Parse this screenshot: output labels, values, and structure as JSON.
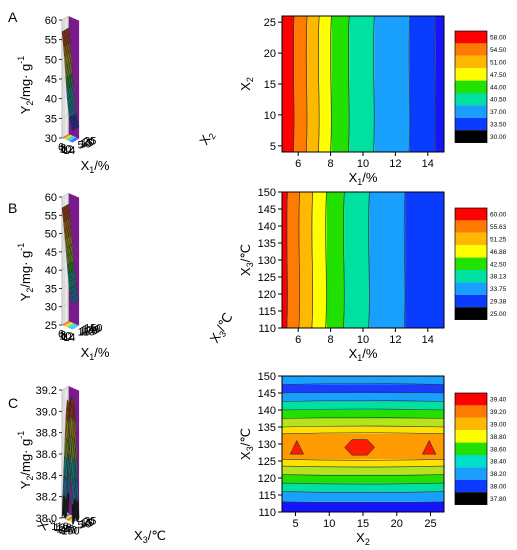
{
  "panel_labels": [
    "A",
    "B",
    "C"
  ],
  "colors": {
    "wall": "#7a1a8c",
    "grid_wall": "#c9c9c9",
    "scale": [
      "#000000",
      "#1a3cff",
      "#19b4ff",
      "#00e0c8",
      "#28d12a",
      "#b6e31b",
      "#ffe000",
      "#ff9a00",
      "#ff4a00",
      "#ff0000"
    ]
  },
  "chart_data": [
    {
      "type": "surface3d",
      "panel": "A",
      "xlabel_main": "X",
      "xlabel_sub": "1",
      "xlabel_unit": "/%",
      "ylabel_main": "X",
      "ylabel_sub": "2",
      "zlabel_main": "Y",
      "zlabel_sub": "2",
      "zlabel_unit": "/mg· g",
      "zlabel_exp": "-1",
      "xticks": [
        "6",
        "8",
        "10",
        "12",
        "14"
      ],
      "yticks": [
        "5",
        "10",
        "15",
        "20",
        "25"
      ],
      "zticks": [
        "30",
        "35",
        "40",
        "45",
        "50",
        "55",
        "60"
      ],
      "xlim": [
        5,
        15
      ],
      "ylim": [
        5,
        25
      ],
      "zlim": [
        30,
        60
      ],
      "surface_z_by_x": [
        57,
        54,
        50,
        45,
        40.5,
        37.5,
        35.5,
        34,
        33
      ]
    },
    {
      "type": "contour",
      "panel": "A",
      "xlabel_main": "X",
      "xlabel_sub": "1",
      "xlabel_unit": "/%",
      "ylabel_main": "X",
      "ylabel_sub": "2",
      "xticks": [
        "6",
        "8",
        "10",
        "12",
        "14"
      ],
      "yticks": [
        "5",
        "10",
        "15",
        "20",
        "25"
      ],
      "xlim": [
        5,
        15
      ],
      "ylim": [
        4,
        26
      ],
      "boundaries_x": [
        5.75,
        6.55,
        7.3,
        8.05,
        9.15,
        10.7,
        12.9,
        14.5
      ],
      "legend": [
        "58.00",
        "54.50",
        "51.00",
        "47.50",
        "44.00",
        "40.50",
        "37.00",
        "33.50",
        "30.00"
      ]
    },
    {
      "type": "surface3d",
      "panel": "B",
      "xlabel_main": "X",
      "xlabel_sub": "1",
      "xlabel_unit": "/%",
      "ylabel_main": "X",
      "ylabel_sub": "3",
      "ylabel_unit": "/℃",
      "zlabel_main": "Y",
      "zlabel_sub": "2",
      "zlabel_unit": "/mg· g",
      "zlabel_exp": "-1",
      "xticks": [
        "6",
        "8",
        "10",
        "12",
        "14"
      ],
      "yticks": [
        "110",
        "120",
        "130",
        "140",
        "150"
      ],
      "zticks": [
        "25",
        "30",
        "35",
        "40",
        "45",
        "50",
        "55",
        "60"
      ],
      "xlim": [
        5,
        15
      ],
      "ylim": [
        110,
        150
      ],
      "zlim": [
        25,
        60
      ],
      "surface_z_by_x": [
        57,
        54,
        50,
        46,
        42,
        38,
        35,
        33,
        32
      ]
    },
    {
      "type": "contour",
      "panel": "B",
      "xlabel_main": "X",
      "xlabel_sub": "1",
      "xlabel_unit": "/%",
      "ylabel_main": "X",
      "ylabel_sub": "3",
      "ylabel_unit": "/℃",
      "xticks": [
        "6",
        "8",
        "10",
        "12",
        "14"
      ],
      "yticks": [
        "110",
        "115",
        "120",
        "125",
        "130",
        "135",
        "140",
        "145",
        "150"
      ],
      "xlim": [
        5,
        15
      ],
      "ylim": [
        110,
        150
      ],
      "boundaries_x": [
        5.35,
        6.1,
        6.9,
        7.75,
        8.85,
        10.4,
        12.6,
        15.2
      ],
      "legend": [
        "60.00",
        "55.63",
        "51.25",
        "46.88",
        "42.50",
        "38.13",
        "33.75",
        "29.38",
        "25.00"
      ]
    },
    {
      "type": "surface3d",
      "panel": "C",
      "xlabel_main": "X",
      "xlabel_sub": "3",
      "xlabel_unit": "/℃",
      "ylabel_main": "X",
      "ylabel_sub": "2",
      "zlabel_main": "Y",
      "zlabel_sub": "2",
      "zlabel_unit": "/mg· g",
      "zlabel_exp": "-1",
      "xticks": [
        "110",
        "120",
        "130",
        "140",
        "150"
      ],
      "yticks": [
        "5",
        "10",
        "15",
        "20",
        "25"
      ],
      "zticks": [
        "38.0",
        "38.2",
        "38.4",
        "38.6",
        "38.8",
        "39.0",
        "39.2"
      ],
      "xlim": [
        110,
        150
      ],
      "ylim": [
        5,
        25
      ],
      "zlim": [
        38,
        39.3
      ],
      "surface_z_by_x": [
        38.0,
        38.35,
        38.7,
        39.05,
        39.2,
        39.05,
        38.7,
        38.35,
        38.0
      ]
    },
    {
      "type": "contour",
      "panel": "C",
      "xlabel_main": "X",
      "xlabel_sub": "2",
      "ylabel_main": "X",
      "ylabel_sub": "3",
      "ylabel_unit": "/℃",
      "xticks": [
        "5",
        "10",
        "15",
        "20",
        "25"
      ],
      "yticks": [
        "110",
        "115",
        "120",
        "125",
        "130",
        "135",
        "140",
        "145",
        "150"
      ],
      "xlim": [
        3,
        27
      ],
      "ylim": [
        110,
        150
      ],
      "legend": [
        "39.40",
        "39.20",
        "39.00",
        "38.80",
        "38.60",
        "38.40",
        "38.20",
        "38.00",
        "37.80"
      ]
    }
  ]
}
